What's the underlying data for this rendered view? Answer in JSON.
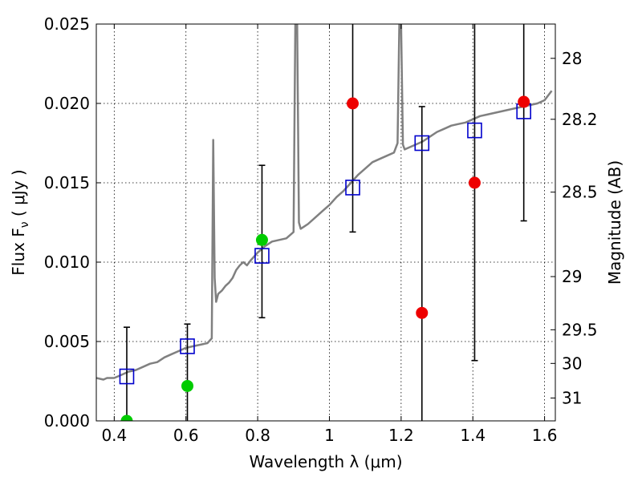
{
  "chart_data": {
    "type": "scatter",
    "xlabel": "Wavelength  λ (μm)",
    "ylabel": "Flux  F_ν  ( μJy )",
    "ylabel_right": "Magnitude (AB)",
    "xlim": [
      0.35,
      1.63
    ],
    "ylim": [
      0.0,
      0.025
    ],
    "grid": true,
    "x_ticks": [
      0.4,
      0.6,
      0.8,
      1.0,
      1.2,
      1.4,
      1.6
    ],
    "x_tick_labels": [
      "0.4",
      "0.6",
      "0.8",
      "1",
      "1.2",
      "1.4",
      "1.6"
    ],
    "y_ticks": [
      0.0,
      0.005,
      0.01,
      0.015,
      0.02,
      0.025
    ],
    "y_tick_labels": [
      "0.000",
      "0.005",
      "0.010",
      "0.015",
      "0.020",
      "0.025"
    ],
    "right_ticks": [
      {
        "label": "28",
        "flux": 0.02284
      },
      {
        "label": "28.2",
        "flux": 0.019
      },
      {
        "label": "28.5",
        "flux": 0.01441
      },
      {
        "label": "29",
        "flux": 0.00909
      },
      {
        "label": "29.5",
        "flux": 0.00574
      },
      {
        "label": "30",
        "flux": 0.00362
      },
      {
        "label": "31",
        "flux": 0.00144
      }
    ],
    "colors": {
      "sed": "#808080",
      "model_box": "#0000cc",
      "green_point": "#00cc00",
      "red_point": "#ee0000",
      "error_bar": "#000000"
    },
    "series": [
      {
        "kind": "sed_line",
        "x": [
          0.35,
          0.37,
          0.38,
          0.4,
          0.42,
          0.44,
          0.46,
          0.48,
          0.5,
          0.52,
          0.54,
          0.56,
          0.58,
          0.6,
          0.62,
          0.64,
          0.66,
          0.672,
          0.676,
          0.68,
          0.684,
          0.69,
          0.7,
          0.71,
          0.72,
          0.73,
          0.74,
          0.75,
          0.76,
          0.77,
          0.78,
          0.8,
          0.82,
          0.84,
          0.86,
          0.88,
          0.9,
          0.905,
          0.91,
          0.915,
          0.92,
          0.94,
          0.96,
          0.98,
          1.0,
          1.02,
          1.04,
          1.06,
          1.08,
          1.1,
          1.12,
          1.14,
          1.16,
          1.18,
          1.19,
          1.195,
          1.2,
          1.205,
          1.21,
          1.22,
          1.24,
          1.26,
          1.28,
          1.3,
          1.32,
          1.34,
          1.36,
          1.38,
          1.4,
          1.42,
          1.44,
          1.46,
          1.48,
          1.5,
          1.52,
          1.54,
          1.56,
          1.58,
          1.6,
          1.62
        ],
        "y": [
          0.0027,
          0.0026,
          0.0027,
          0.0027,
          0.0029,
          0.0031,
          0.0032,
          0.0034,
          0.0036,
          0.0037,
          0.004,
          0.0042,
          0.0044,
          0.0046,
          0.0047,
          0.0048,
          0.0049,
          0.0052,
          0.0177,
          0.009,
          0.0075,
          0.008,
          0.0082,
          0.0085,
          0.0087,
          0.009,
          0.0095,
          0.0098,
          0.01,
          0.0098,
          0.0101,
          0.0106,
          0.011,
          0.0113,
          0.0114,
          0.0115,
          0.0119,
          0.025,
          0.025,
          0.0125,
          0.0121,
          0.0124,
          0.0128,
          0.0132,
          0.0136,
          0.0141,
          0.0145,
          0.015,
          0.0155,
          0.0159,
          0.0163,
          0.0165,
          0.0167,
          0.0169,
          0.0175,
          0.025,
          0.025,
          0.0174,
          0.0171,
          0.0172,
          0.0174,
          0.0176,
          0.0179,
          0.0182,
          0.0184,
          0.0186,
          0.0187,
          0.0188,
          0.019,
          0.0192,
          0.0193,
          0.0194,
          0.0195,
          0.0196,
          0.0197,
          0.0198,
          0.0199,
          0.02,
          0.0202,
          0.0208
        ]
      },
      {
        "kind": "model_boxes",
        "x": [
          0.435,
          0.604,
          0.812,
          1.065,
          1.258,
          1.405,
          1.542
        ],
        "y": [
          0.0028,
          0.0047,
          0.0104,
          0.0147,
          0.0175,
          0.0183,
          0.0195
        ]
      },
      {
        "kind": "green_points",
        "x": [
          0.435,
          0.604,
          0.812
        ],
        "y": [
          0.0,
          0.0022,
          0.0114
        ]
      },
      {
        "kind": "red_points",
        "x": [
          1.065,
          1.258,
          1.405,
          1.542
        ],
        "y": [
          0.02,
          0.0068,
          0.015,
          0.0201
        ]
      },
      {
        "kind": "error_bars",
        "x": [
          0.435,
          0.604,
          0.812,
          1.065,
          1.258,
          1.405,
          1.542
        ],
        "low": [
          0.0,
          0.0,
          0.0065,
          0.0119,
          0.0,
          0.0038,
          0.0126
        ],
        "high": [
          0.0059,
          0.0061,
          0.0161,
          0.025,
          0.0198,
          0.025,
          0.025
        ],
        "cap_high": [
          true,
          true,
          true,
          false,
          true,
          false,
          false
        ],
        "cap_low": [
          false,
          false,
          true,
          true,
          false,
          true,
          true
        ]
      }
    ]
  }
}
